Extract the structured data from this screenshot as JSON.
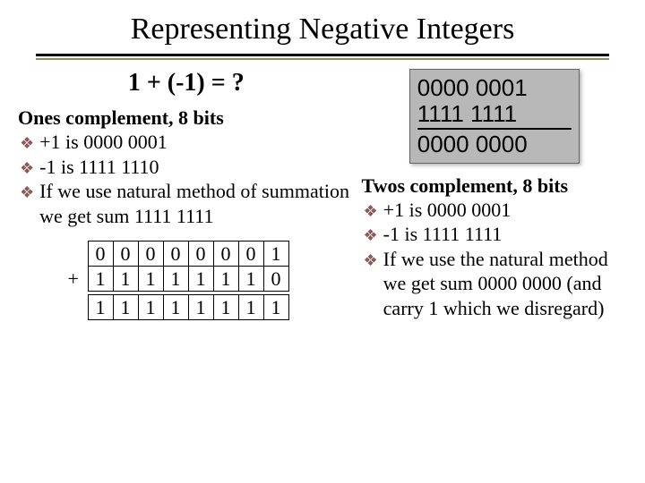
{
  "title": "Representing Negative Integers",
  "subheading": "1 + (-1) = ?",
  "ones": {
    "heading": "Ones complement, 8 bits",
    "b1": "+1 is 0000 0001",
    "b2": "-1 is 1111 1110",
    "b3": "If we use natural method of summation we get sum 1111 1111",
    "table": {
      "r1": [
        "0",
        "0",
        "0",
        "0",
        "0",
        "0",
        "0",
        "1"
      ],
      "r2": [
        "1",
        "1",
        "1",
        "1",
        "1",
        "1",
        "1",
        "0"
      ],
      "sum": [
        "1",
        "1",
        "1",
        "1",
        "1",
        "1",
        "1",
        "1"
      ],
      "plus": "+"
    }
  },
  "twos": {
    "box": {
      "r1": "0000 0001",
      "r2": "1111 1111",
      "r3": "0000 0000"
    },
    "heading": "Twos complement, 8 bits",
    "b1": "+1 is 0000 0001",
    "b2": "-1 is 1111 1111",
    "b3": "If we use the natural method we get sum 0000 0000 (and carry 1 which we disregard)"
  },
  "colors": {
    "bullet": "#8a5a5a",
    "hr_accent": "#809553"
  }
}
